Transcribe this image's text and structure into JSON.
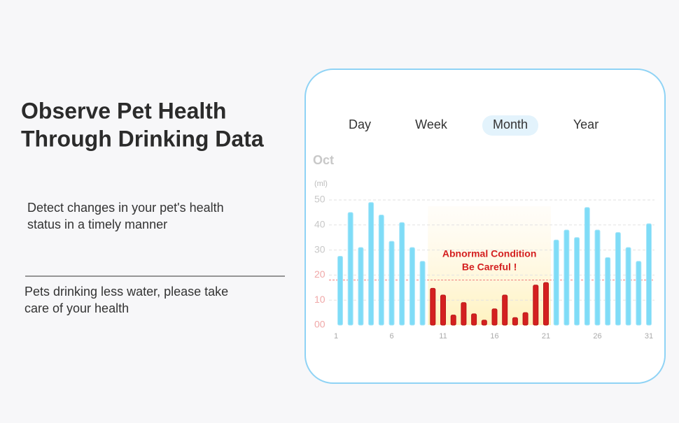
{
  "headline": [
    "Observe Pet Health",
    "Through Drinking Data"
  ],
  "points": [
    [
      "Detect changes in your pet's health",
      "status in a timely manner"
    ],
    [
      "Pets drinking less water, please take",
      "care of your health"
    ]
  ],
  "tabs": [
    "Day",
    "Week",
    "Month",
    "Year"
  ],
  "selected_tab": 2,
  "chart_data": {
    "type": "bar",
    "title": "Oct",
    "y_label": "(ml)",
    "categories": [
      "1",
      null,
      null,
      null,
      null,
      "6",
      null,
      null,
      null,
      null,
      "11",
      null,
      null,
      null,
      null,
      "16",
      null,
      null,
      null,
      null,
      "21",
      null,
      null,
      null,
      null,
      "26",
      null,
      null,
      null,
      null,
      "31"
    ],
    "values": [
      27.5,
      45,
      31,
      49,
      44,
      33.5,
      41,
      31,
      25.5,
      14.7,
      12,
      4,
      9,
      4.5,
      2,
      6.5,
      12,
      3,
      5,
      16,
      17,
      34,
      38,
      35,
      47,
      38,
      27,
      37,
      31,
      25.5,
      40.5
    ],
    "colors": [
      "#7fdcf7",
      "#7fdcf7",
      "#7fdcf7",
      "#7fdcf7",
      "#7fdcf7",
      "#7fdcf7",
      "#7fdcf7",
      "#7fdcf7",
      "#7fdcf7",
      "#d42020",
      "#d42020",
      "#d42020",
      "#d42020",
      "#d42020",
      "#d42020",
      "#d42020",
      "#d42020",
      "#d42020",
      "#d42020",
      "#d42020",
      "#d42020",
      "#7fdcf7",
      "#7fdcf7",
      "#7fdcf7",
      "#7fdcf7",
      "#7fdcf7",
      "#7fdcf7",
      "#7fdcf7",
      "#7fdcf7",
      "#7fdcf7",
      "#7fdcf7"
    ],
    "ylim": [
      0,
      50
    ],
    "yticks": [
      {
        "value": 0,
        "label": "00"
      },
      10,
      20,
      30,
      40,
      50
    ],
    "grid": true,
    "threshold_line": 18,
    "annotation": [
      "Abnormal Condition",
      "Be Careful !"
    ]
  }
}
